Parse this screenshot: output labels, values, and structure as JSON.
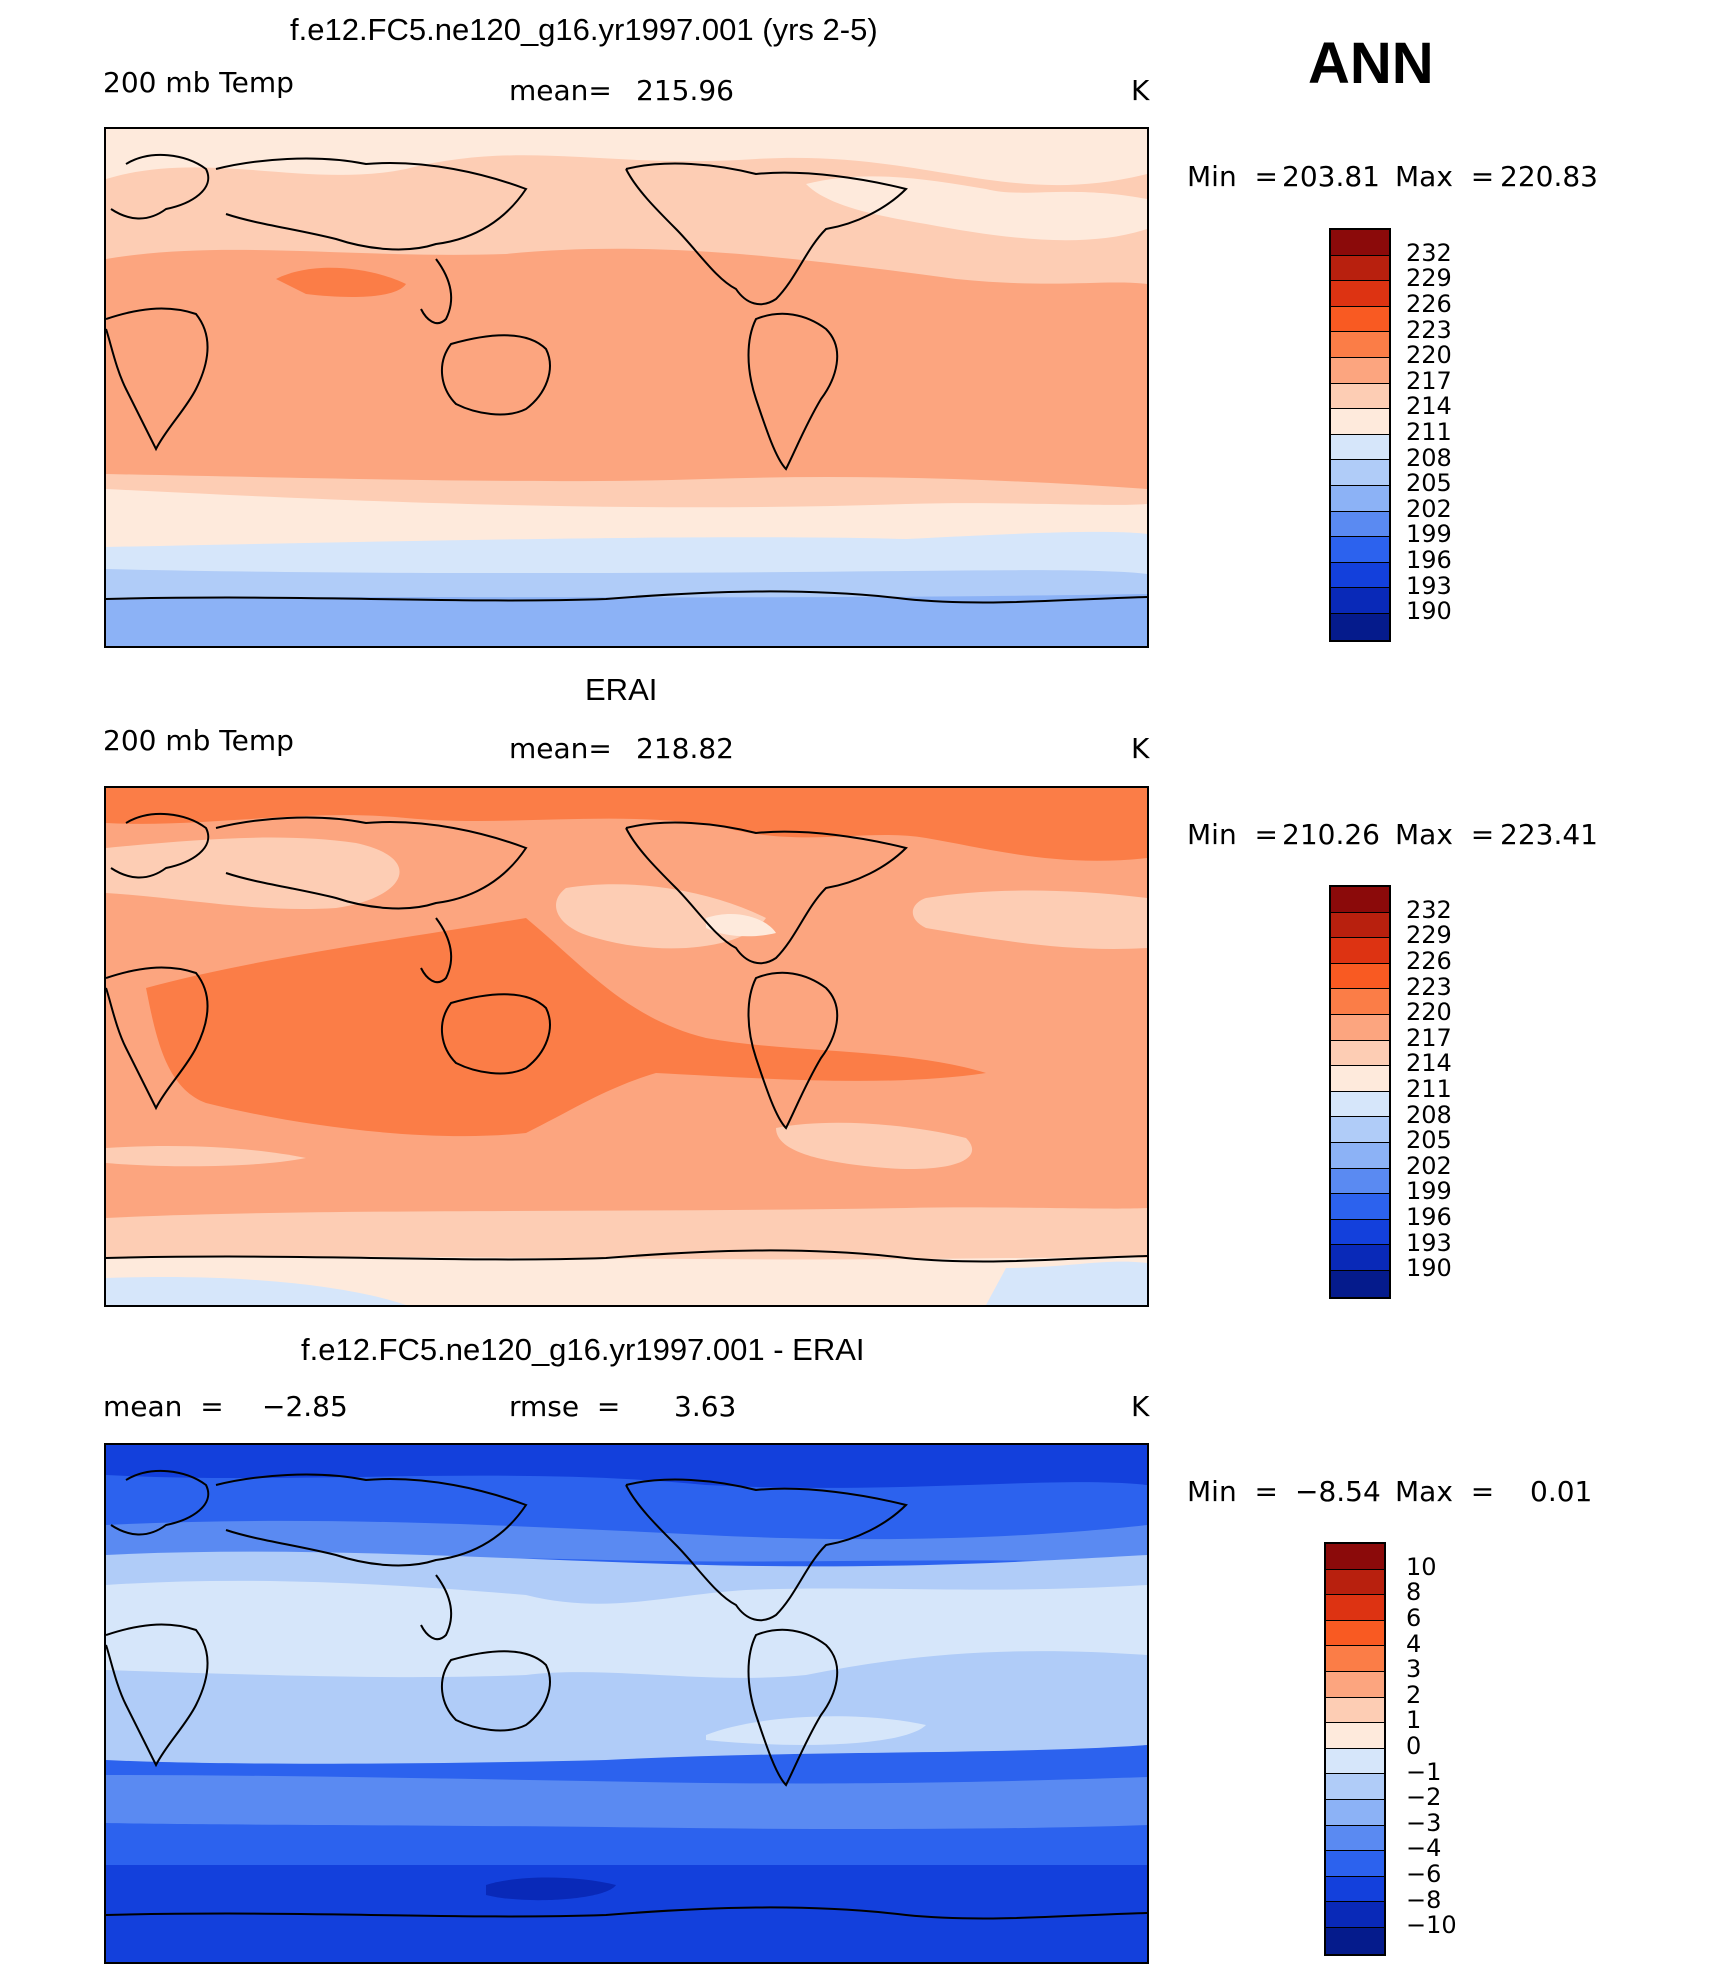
{
  "season": "ANN",
  "panel1": {
    "title": "f.e12.FC5.ne120_g16.yr1997.001 (yrs 2-5)",
    "variable": "200 mb Temp",
    "mean_label": "mean=",
    "mean_value": "215.96",
    "units": "K",
    "min_label": "Min  =",
    "min_value": "203.81",
    "max_label": "Max  =",
    "max_value": "220.83"
  },
  "panel2": {
    "title": "ERAI",
    "variable": "200 mb Temp",
    "mean_label": "mean=",
    "mean_value": "218.82",
    "units": "K",
    "min_label": "Min  =",
    "min_value": "210.26",
    "max_label": "Max  =",
    "max_value": "223.41"
  },
  "panel3": {
    "title": "f.e12.FC5.ne120_g16.yr1997.001 - ERAI",
    "mean_label": "mean  =",
    "mean_value": "−2.85",
    "rmse_label": "rmse  =",
    "rmse_value": "3.63",
    "units": "K",
    "min_label": "Min  =",
    "min_value": "−8.54",
    "max_label": "Max  =",
    "max_value": "0.01"
  },
  "colorbar_abs": {
    "levels": [
      "232",
      "229",
      "226",
      "223",
      "220",
      "217",
      "214",
      "211",
      "208",
      "205",
      "202",
      "199",
      "196",
      "193",
      "190"
    ],
    "colors": [
      "#8b0a0a",
      "#b8200e",
      "#dd3312",
      "#f95a22",
      "#fb7d47",
      "#fca57f",
      "#fdcdb4",
      "#feeadc",
      "#d6e6fa",
      "#b0ccf8",
      "#8cb2f6",
      "#5a8af2",
      "#2c62ee",
      "#1340dc",
      "#0929b8",
      "#051b8c"
    ]
  },
  "colorbar_diff": {
    "levels": [
      "10",
      "8",
      "6",
      "4",
      "3",
      "2",
      "1",
      "0",
      "−1",
      "−2",
      "−3",
      "−4",
      "−6",
      "−8",
      "−10"
    ],
    "colors": [
      "#8b0a0a",
      "#b8200e",
      "#dd3312",
      "#f95a22",
      "#fb7d47",
      "#fca57f",
      "#fdcdb4",
      "#feeadc",
      "#d6e6fa",
      "#b0ccf8",
      "#8cb2f6",
      "#5a8af2",
      "#2c62ee",
      "#1340dc",
      "#0929b8",
      "#051b8c"
    ]
  }
}
